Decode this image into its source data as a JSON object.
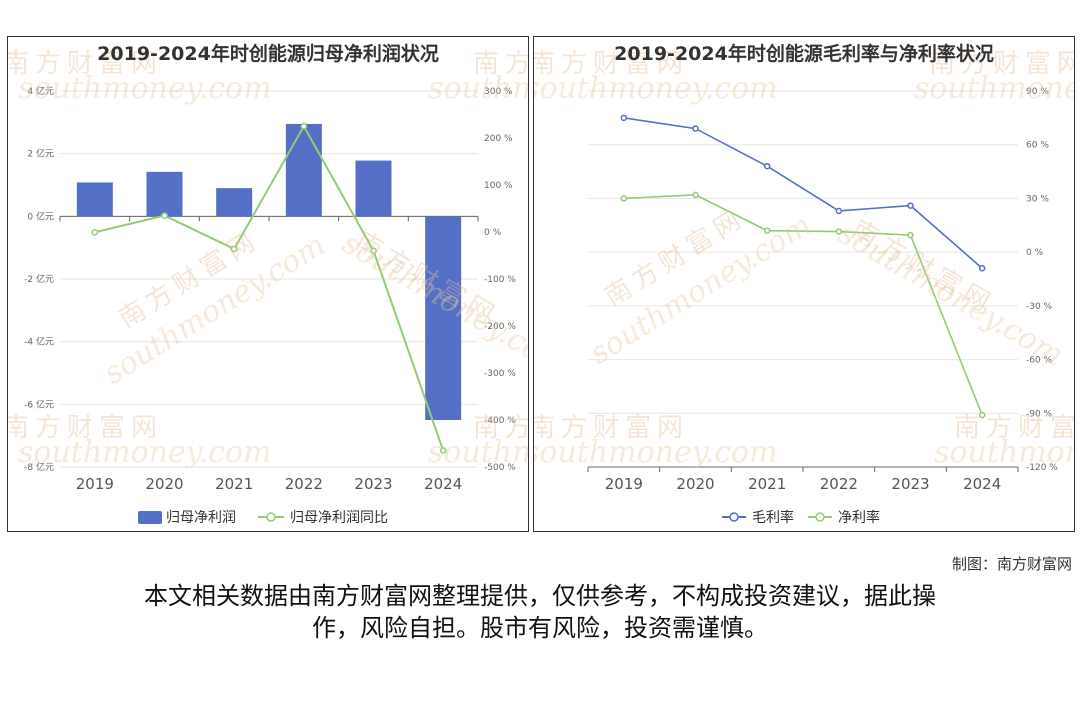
{
  "charts": {
    "left": {
      "title": "2019-2024年时创能源归母净利润状况",
      "legend": [
        "归母净利润",
        "归母净利润同比"
      ],
      "left_ticks": [
        "4 亿元",
        "2 亿元",
        "0 亿元",
        "-2 亿元",
        "-4 亿元",
        "-6 亿元",
        "-8 亿元"
      ],
      "right_ticks": [
        "300 %",
        "200 %",
        "100 %",
        "0 %",
        "-100 %",
        "-200 %",
        "-300 %",
        "-400 %",
        "-500 %"
      ]
    },
    "right": {
      "title": "2019-2024年时创能源毛利率与净利率状况",
      "legend": [
        "毛利率",
        "净利率"
      ],
      "right_ticks": [
        "90 %",
        "60 %",
        "30 %",
        "0 %",
        "-30 %",
        "-60 %",
        "-90 %",
        "-120 %"
      ]
    }
  },
  "chart_data": [
    {
      "type": "bar",
      "title": "2019-2024年时创能源归母净利润状况",
      "categories": [
        "2019",
        "2020",
        "2021",
        "2022",
        "2023",
        "2024"
      ],
      "series": [
        {
          "name": "归母净利润",
          "type": "bar",
          "axis": "left",
          "unit": "亿元",
          "values": [
            1.08,
            1.42,
            0.9,
            2.95,
            1.78,
            -6.5
          ]
        },
        {
          "name": "归母净利润同比",
          "type": "line",
          "axis": "right",
          "unit": "%",
          "values": [
            -0.6,
            35,
            -36,
            225,
            -40,
            -465
          ]
        }
      ],
      "ylim_left": [
        -8,
        4
      ],
      "ylim_right": [
        -500,
        300
      ],
      "grid": true,
      "legend_position": "bottom"
    },
    {
      "type": "line",
      "title": "2019-2024年时创能源毛利率与净利率状况",
      "categories": [
        "2019",
        "2020",
        "2021",
        "2022",
        "2023",
        "2024"
      ],
      "series": [
        {
          "name": "毛利率",
          "unit": "%",
          "values": [
            75,
            69,
            48,
            23,
            26,
            -9
          ]
        },
        {
          "name": "净利率",
          "unit": "%",
          "values": [
            30,
            32,
            12,
            11.5,
            9.5,
            -91
          ]
        }
      ],
      "ylim": [
        -120,
        90
      ],
      "grid": true,
      "legend_position": "bottom"
    }
  ],
  "colors": {
    "bar": "#5470c6",
    "line_green": "#91cc75",
    "line_blue": "#5470c6"
  },
  "watermark": {
    "cn": "南方财富网",
    "en": "southmoney.com"
  },
  "footer": {
    "credit": "制图：南方财富网",
    "disclaimer_line1": "本文相关数据由南方财富网整理提供，仅供参考，不构成投资建议，据此操",
    "disclaimer_line2": "作，风险自担。股市有风险，投资需谨慎。"
  }
}
